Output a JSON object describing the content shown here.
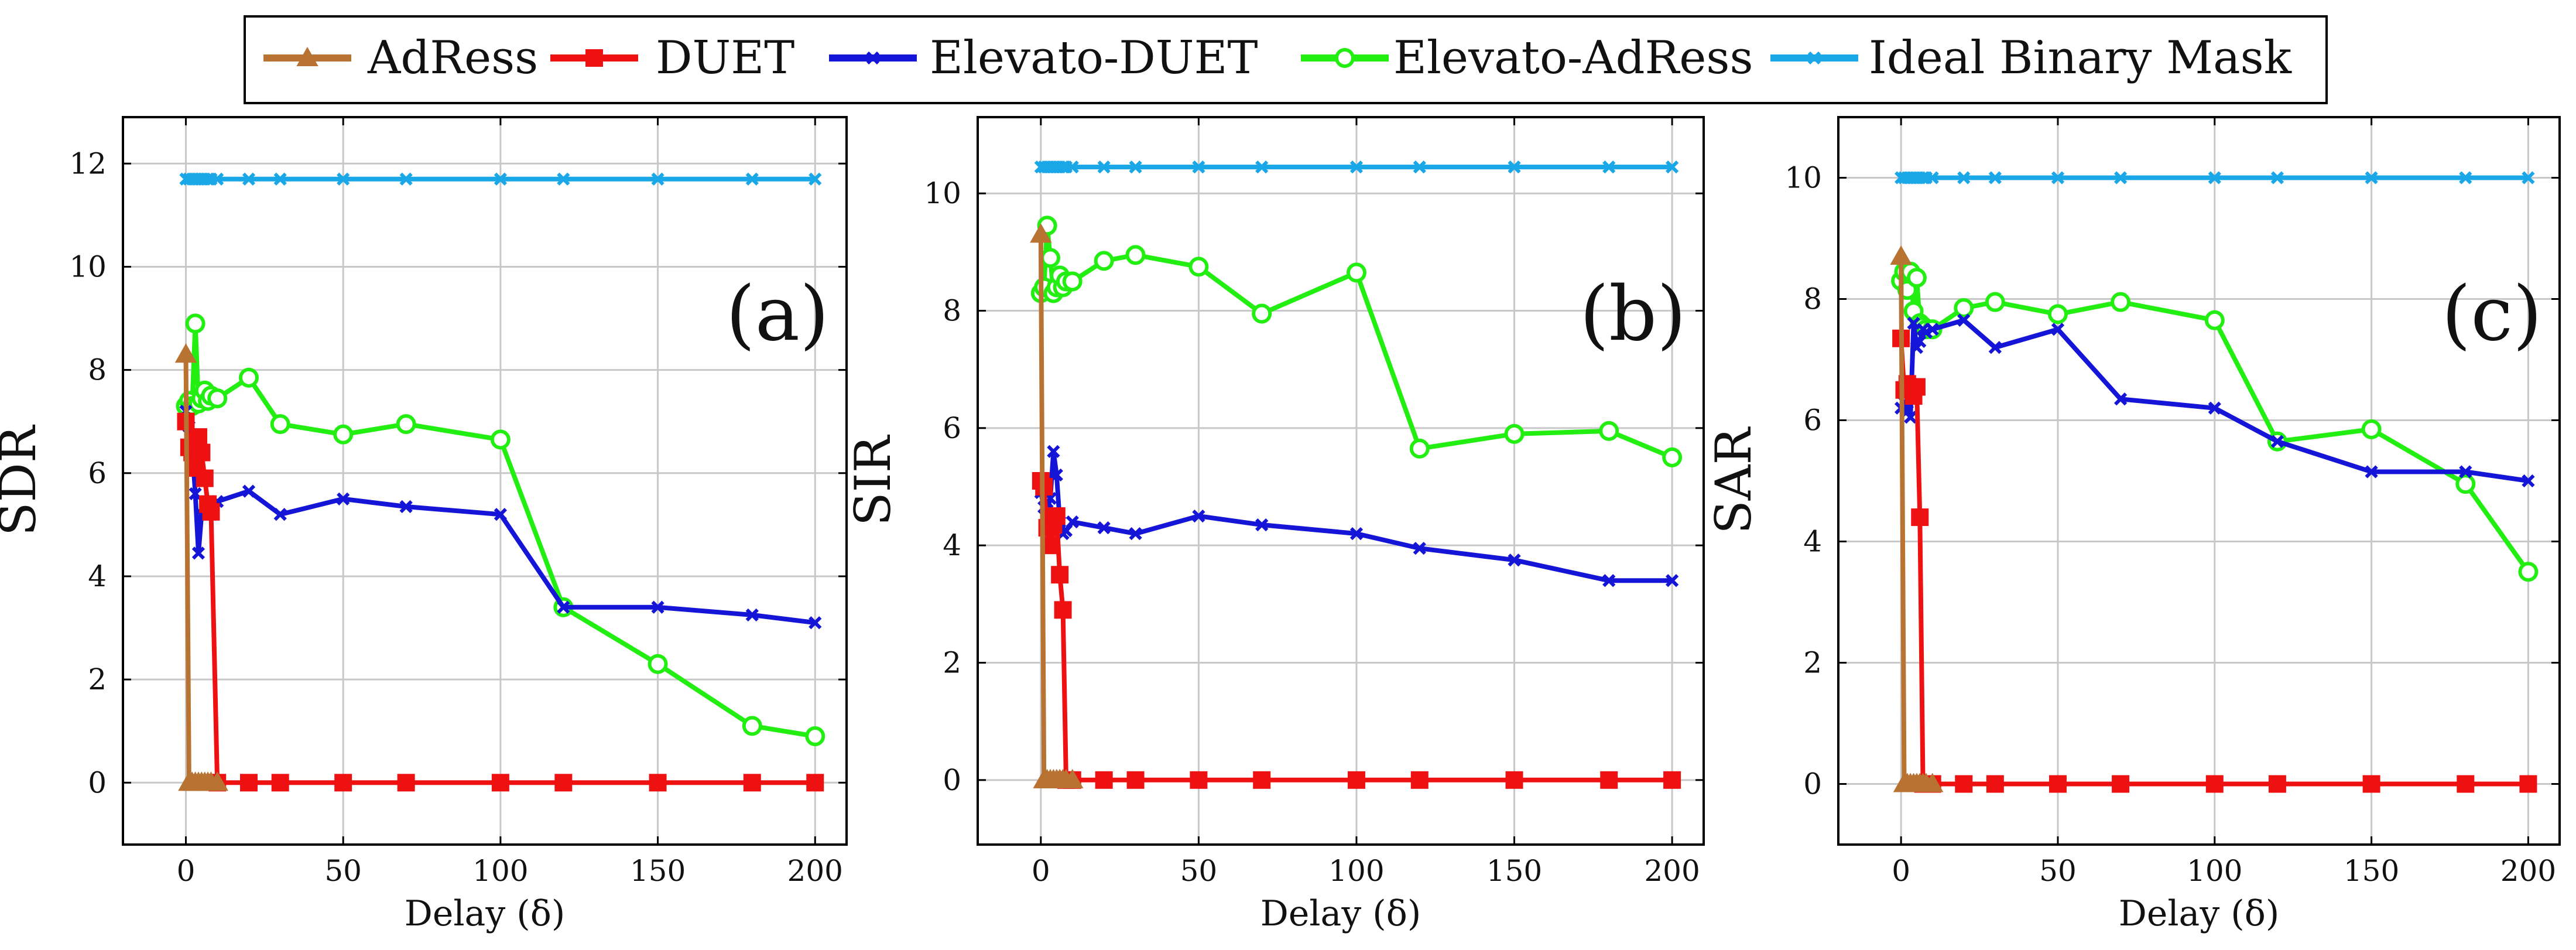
{
  "chart_data": {
    "type": "line",
    "legend": [
      {
        "name": "AdRess",
        "color": "#b87333",
        "marker": "triangle"
      },
      {
        "name": "DUET",
        "color": "#ee1111",
        "marker": "square"
      },
      {
        "name": "Elevato-DUET",
        "color": "#1515d8",
        "marker": "x"
      },
      {
        "name": "Elevato-AdRess",
        "color": "#22ee11",
        "marker": "circle"
      },
      {
        "name": "Ideal Binary Mask",
        "color": "#1aa7e8",
        "marker": "x"
      }
    ],
    "legend_position": "top-center",
    "panels": [
      {
        "label": "(a)",
        "ylabel": "SDR",
        "xlabel": "Delay (δ)",
        "xlim": [
          -20,
          210
        ],
        "ylim": [
          -1.2,
          12.9
        ],
        "xticks": [
          0,
          50,
          100,
          150,
          200
        ],
        "yticks": [
          0,
          2,
          4,
          6,
          8,
          10,
          12
        ],
        "grid": true,
        "series": [
          {
            "name": "Ideal Binary Mask",
            "x": [
              0,
              1,
              2,
              3,
              4,
              5,
              6,
              7,
              8,
              10,
              20,
              30,
              50,
              70,
              100,
              120,
              150,
              180,
              200
            ],
            "y": [
              11.7,
              11.7,
              11.7,
              11.7,
              11.7,
              11.7,
              11.7,
              11.7,
              11.7,
              11.7,
              11.7,
              11.7,
              11.7,
              11.7,
              11.7,
              11.7,
              11.7,
              11.7,
              11.7
            ]
          },
          {
            "name": "Elevato-AdRess",
            "x": [
              0,
              1,
              2,
              3,
              4,
              5,
              6,
              7,
              8,
              10,
              20,
              30,
              50,
              70,
              100,
              120,
              150,
              180,
              200
            ],
            "y": [
              7.3,
              7.4,
              7.3,
              8.9,
              7.35,
              7.45,
              7.6,
              7.4,
              7.5,
              7.45,
              7.85,
              6.95,
              6.75,
              6.95,
              6.65,
              3.4,
              2.3,
              1.1,
              0.9
            ]
          },
          {
            "name": "Elevato-DUET",
            "x": [
              0,
              1,
              2,
              3,
              4,
              5,
              6,
              7,
              8,
              10,
              20,
              30,
              50,
              70,
              100,
              120,
              150,
              180,
              200
            ],
            "y": [
              7.2,
              6.9,
              6.5,
              5.6,
              4.45,
              5.2,
              5.2,
              5.2,
              5.2,
              5.45,
              5.65,
              5.2,
              5.5,
              5.35,
              5.2,
              3.4,
              3.4,
              3.25,
              3.1
            ]
          },
          {
            "name": "DUET",
            "x": [
              0,
              1,
              2,
              3,
              4,
              5,
              6,
              7,
              8,
              10,
              20,
              30,
              50,
              70,
              100,
              120,
              150,
              180,
              200
            ],
            "y": [
              7.0,
              6.5,
              6.4,
              6.1,
              6.7,
              6.4,
              5.9,
              5.4,
              5.25,
              0,
              0,
              0,
              0,
              0,
              0,
              0,
              0,
              0,
              0
            ]
          },
          {
            "name": "AdRess",
            "x": [
              0,
              1,
              2,
              3,
              4,
              5,
              6,
              7,
              8,
              10
            ],
            "y": [
              8.3,
              0,
              0,
              0,
              0,
              0,
              0,
              0,
              0,
              0
            ]
          }
        ]
      },
      {
        "label": "(b)",
        "ylabel": "SIR",
        "xlabel": "Delay (δ)",
        "xlim": [
          -20,
          210
        ],
        "ylim": [
          -1.1,
          11.3
        ],
        "xticks": [
          0,
          50,
          100,
          150,
          200
        ],
        "yticks": [
          0,
          2,
          4,
          6,
          8,
          10
        ],
        "grid": true,
        "series": [
          {
            "name": "Ideal Binary Mask",
            "x": [
              0,
              1,
              2,
              3,
              4,
              5,
              6,
              7,
              8,
              10,
              20,
              30,
              50,
              70,
              100,
              120,
              150,
              180,
              200
            ],
            "y": [
              10.45,
              10.45,
              10.45,
              10.45,
              10.45,
              10.45,
              10.45,
              10.45,
              10.45,
              10.45,
              10.45,
              10.45,
              10.45,
              10.45,
              10.45,
              10.45,
              10.45,
              10.45,
              10.45
            ]
          },
          {
            "name": "Elevato-AdRess",
            "x": [
              0,
              1,
              2,
              3,
              4,
              5,
              6,
              7,
              8,
              10,
              20,
              30,
              50,
              70,
              100,
              120,
              150,
              180,
              200
            ],
            "y": [
              8.3,
              8.4,
              9.45,
              8.9,
              8.3,
              8.4,
              8.6,
              8.4,
              8.5,
              8.5,
              8.85,
              8.95,
              8.75,
              7.95,
              8.65,
              5.65,
              5.9,
              5.95,
              5.5
            ]
          },
          {
            "name": "Elevato-DUET",
            "x": [
              0,
              1,
              2,
              3,
              4,
              5,
              6,
              7,
              8,
              10,
              20,
              30,
              50,
              70,
              100,
              120,
              150,
              180,
              200
            ],
            "y": [
              4.9,
              4.65,
              4.6,
              4.8,
              5.6,
              5.2,
              4.4,
              4.2,
              4.25,
              4.4,
              4.3,
              4.2,
              4.5,
              4.35,
              4.2,
              3.95,
              3.75,
              3.4,
              3.4
            ]
          },
          {
            "name": "DUET",
            "x": [
              0,
              1,
              2,
              3,
              4,
              5,
              6,
              7,
              8,
              10,
              20,
              30,
              50,
              70,
              100,
              120,
              150,
              180,
              200
            ],
            "y": [
              5.1,
              5.0,
              4.3,
              4.0,
              4.35,
              4.5,
              3.5,
              2.9,
              0,
              0,
              0,
              0,
              0,
              0,
              0,
              0,
              0,
              0,
              0
            ]
          },
          {
            "name": "AdRess",
            "x": [
              0,
              1,
              2,
              3,
              4,
              5,
              6,
              7,
              8,
              10
            ],
            "y": [
              9.3,
              0,
              0,
              0,
              0,
              0,
              0,
              0,
              0,
              0
            ]
          }
        ]
      },
      {
        "label": "(c)",
        "ylabel": "SAR",
        "xlabel": "Delay (δ)",
        "xlim": [
          -20,
          210
        ],
        "ylim": [
          -1.0,
          11.0
        ],
        "xticks": [
          0,
          50,
          100,
          150,
          200
        ],
        "yticks": [
          0,
          2,
          4,
          6,
          8,
          10
        ],
        "grid": true,
        "series": [
          {
            "name": "Ideal Binary Mask",
            "x": [
              0,
              1,
              2,
              3,
              4,
              5,
              6,
              7,
              8,
              10,
              20,
              30,
              50,
              70,
              100,
              120,
              150,
              180,
              200
            ],
            "y": [
              10.0,
              10.0,
              10.0,
              10.0,
              10.0,
              10.0,
              10.0,
              10.0,
              10.0,
              10.0,
              10.0,
              10.0,
              10.0,
              10.0,
              10.0,
              10.0,
              10.0,
              10.0,
              10.0
            ]
          },
          {
            "name": "Elevato-AdRess",
            "x": [
              0,
              1,
              2,
              3,
              4,
              5,
              6,
              7,
              8,
              10,
              20,
              30,
              50,
              70,
              100,
              120,
              150,
              180,
              200
            ],
            "y": [
              8.3,
              8.45,
              8.15,
              8.45,
              7.8,
              8.35,
              7.6,
              7.55,
              7.5,
              7.5,
              7.85,
              7.95,
              7.75,
              7.95,
              7.65,
              5.65,
              5.85,
              4.95,
              3.5
            ]
          },
          {
            "name": "Elevato-DUET",
            "x": [
              0,
              1,
              2,
              3,
              4,
              5,
              6,
              7,
              8,
              10,
              20,
              30,
              50,
              70,
              100,
              120,
              150,
              180,
              200
            ],
            "y": [
              6.2,
              6.3,
              6.15,
              6.05,
              7.6,
              7.2,
              7.3,
              7.5,
              7.45,
              7.5,
              7.65,
              7.2,
              7.5,
              6.35,
              6.2,
              5.65,
              5.15,
              5.15,
              5.0
            ]
          },
          {
            "name": "DUET",
            "x": [
              0,
              1,
              2,
              3,
              4,
              5,
              6,
              7,
              8,
              10,
              20,
              30,
              50,
              70,
              100,
              120,
              150,
              180,
              200
            ],
            "y": [
              7.35,
              6.5,
              6.6,
              6.55,
              6.4,
              6.55,
              4.4,
              0,
              0,
              0,
              0,
              0,
              0,
              0,
              0,
              0,
              0,
              0,
              0
            ]
          },
          {
            "name": "AdRess",
            "x": [
              0,
              1,
              2,
              3,
              4,
              5,
              6,
              7,
              8,
              10
            ],
            "y": [
              8.7,
              0,
              0,
              0,
              0,
              0,
              0,
              0,
              0,
              0
            ]
          }
        ]
      }
    ]
  }
}
